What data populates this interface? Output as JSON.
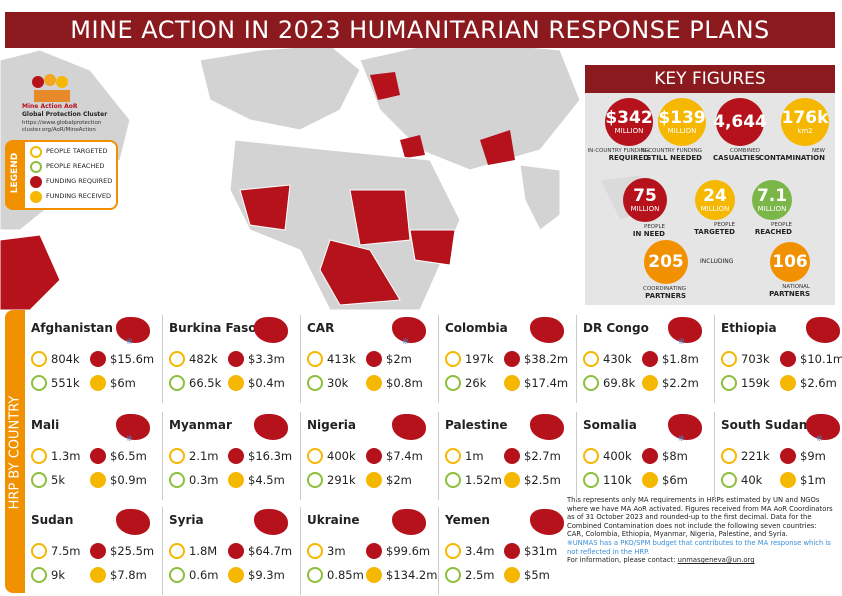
{
  "header": {
    "title": "MINE ACTION IN 2023 HUMANITARIAN RESPONSE PLANS"
  },
  "logo": {
    "name": "Mine Action AoR",
    "org": "Global Protection Cluster",
    "url_1": "https://www.globalprotection",
    "url_2": "cluster.org/AoR/MineAction"
  },
  "legend": {
    "title": "LEGEND",
    "items": [
      "PEOPLE TARGETED",
      "PEOPLE REACHED",
      "FUNDING REQUIRED",
      "FUNDING RECEIVED"
    ]
  },
  "key_figures": {
    "title": "KEY FIGURES",
    "including": "INCLUDING",
    "items": [
      {
        "value": "$342",
        "unit": "MILLION",
        "caption": "IN-COUNTRY FUNDING",
        "caption_bold": "REQUIRED"
      },
      {
        "value": "$139",
        "unit": "MILLION",
        "caption": "IN-COUNTRY FUNDING",
        "caption_bold": "STILL NEEDED"
      },
      {
        "value": "4,644",
        "caption": "COMBINED",
        "caption_bold": "CASUALTIES"
      },
      {
        "value": "176k",
        "unit": "km2",
        "caption": "NEW",
        "caption_bold": "CONTAMINATION"
      },
      {
        "value": "75",
        "unit": "MILLION",
        "caption": "PEOPLE",
        "caption_bold": "IN NEED"
      },
      {
        "value": "24",
        "unit": "MILLION",
        "caption": "PEOPLE",
        "caption_bold": "TARGETED"
      },
      {
        "value": "7.1",
        "unit": "MILLION",
        "caption": "PEOPLE",
        "caption_bold": "REACHED"
      },
      {
        "value": "205",
        "caption": "COORDINATING",
        "caption_bold": "PARTNERS"
      },
      {
        "value": "106",
        "caption": "NATIONAL",
        "caption_bold": "PARTNERS"
      }
    ]
  },
  "section": {
    "title": "HRP BY COUNTRY"
  },
  "countries": [
    {
      "name": "Afghanistan",
      "marker": "※",
      "targeted": "804k",
      "required": "$15.6m",
      "reached": "551k",
      "received": "$6m"
    },
    {
      "name": "Burkina Faso",
      "targeted": "482k",
      "required": "$3.3m",
      "reached": "66.5k",
      "received": "$0.4m"
    },
    {
      "name": "CAR",
      "marker": "※",
      "targeted": "413k",
      "required": "$2m",
      "reached": "30k",
      "received": "$0.8m"
    },
    {
      "name": "Colombia",
      "targeted": "197k",
      "required": "$38.2m",
      "reached": "26k",
      "received": "$17.4m"
    },
    {
      "name": "DR Congo",
      "marker": "※",
      "targeted": "430k",
      "required": "$1.8m",
      "reached": "69.8k",
      "received": "$2.2m"
    },
    {
      "name": "Ethiopia",
      "targeted": "703k",
      "required": "$10.1m",
      "reached": "159k",
      "received": "$2.6m"
    },
    {
      "name": "Mali",
      "marker": "※",
      "targeted": "1.3m",
      "required": "$6.5m",
      "reached": "5k",
      "received": "$0.9m"
    },
    {
      "name": "Myanmar",
      "targeted": "2.1m",
      "required": "$16.3m",
      "reached": "0.3m",
      "received": "$4.5m"
    },
    {
      "name": "Nigeria",
      "targeted": "400k",
      "required": "$7.4m",
      "reached": "291k",
      "received": "$2m"
    },
    {
      "name": "Palestine",
      "targeted": "1m",
      "required": "$2.7m",
      "reached": "1.52m",
      "received": "$2.5m"
    },
    {
      "name": "Somalia",
      "marker": "※",
      "targeted": "400k",
      "required": "$8m",
      "reached": "110k",
      "received": "$6m"
    },
    {
      "name": "South Sudan",
      "marker": "※",
      "targeted": "221k",
      "required": "$9m",
      "reached": "40k",
      "received": "$1m"
    },
    {
      "name": "Sudan",
      "targeted": "7.5m",
      "required": "$25.5m",
      "reached": "9k",
      "received": "$7.8m"
    },
    {
      "name": "Syria",
      "targeted": "1.8M",
      "required": "$64.7m",
      "reached": "0.6m",
      "received": "$9.3m"
    },
    {
      "name": "Ukraine",
      "targeted": "3m",
      "required": "$99.6m",
      "reached": "0.85m",
      "received": "$134.2m"
    },
    {
      "name": "Yemen",
      "targeted": "3.4m",
      "required": "$31m",
      "reached": "2.5m",
      "received": "$5m"
    }
  ],
  "note": {
    "text": "This represents only MA requirements in HRPs estimated by UN and NGOs where we have MA AoR activated. Figures received from MA AoR Coordinators as of 31 October 2023 and rounded-up to the first decimal. Data for the Combined Contamination does not include the following seven countries: CAR, Colombia, Ethiopia, Myanmar, Nigeria, Palestine, and Syria.",
    "unmas": "※UNMAS has a PKO/SPM budget that contributes to the MA response which is not reflected in the HRP.",
    "contact": "For information, please contact:",
    "email": "unmasgeneva@un.org"
  }
}
